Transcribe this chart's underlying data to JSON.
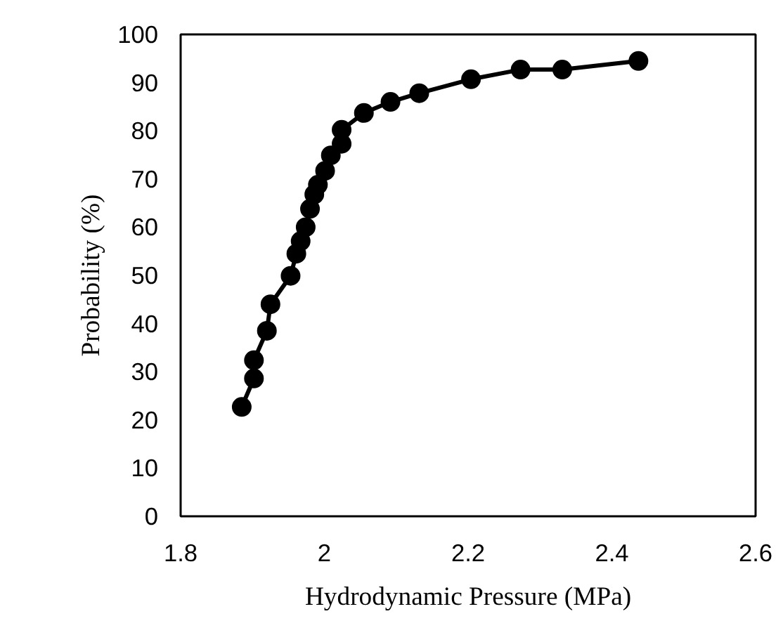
{
  "chart_data": {
    "type": "line",
    "xlabel": "Hydrodynamic Pressure (MPa)",
    "ylabel": "Probability (%)",
    "x": [
      1.885,
      1.902,
      1.902,
      1.92,
      1.925,
      1.953,
      1.961,
      1.967,
      1.974,
      1.98,
      1.986,
      1.991,
      2.001,
      2.009,
      2.024,
      2.024,
      2.055,
      2.092,
      2.132,
      2.204,
      2.273,
      2.331,
      2.437
    ],
    "series": [
      {
        "color": "#000000",
        "values": [
          22.7,
          28.6,
          32.4,
          38.5,
          44,
          49.9,
          54.5,
          57.1,
          60,
          63.8,
          66.8,
          68.8,
          71.7,
          74.9,
          77.3,
          80.2,
          83.7,
          86,
          87.8,
          90.7,
          92.7,
          92.7,
          94.5
        ]
      }
    ],
    "xlim": [
      1.8,
      2.6
    ],
    "ylim": [
      0,
      100
    ],
    "xticks": [
      1.8,
      2,
      2.2,
      2.4,
      2.6
    ],
    "yticks": [
      0,
      10,
      20,
      30,
      40,
      50,
      60,
      70,
      80,
      90,
      100
    ],
    "marker": "circle",
    "line_style": "solid"
  }
}
